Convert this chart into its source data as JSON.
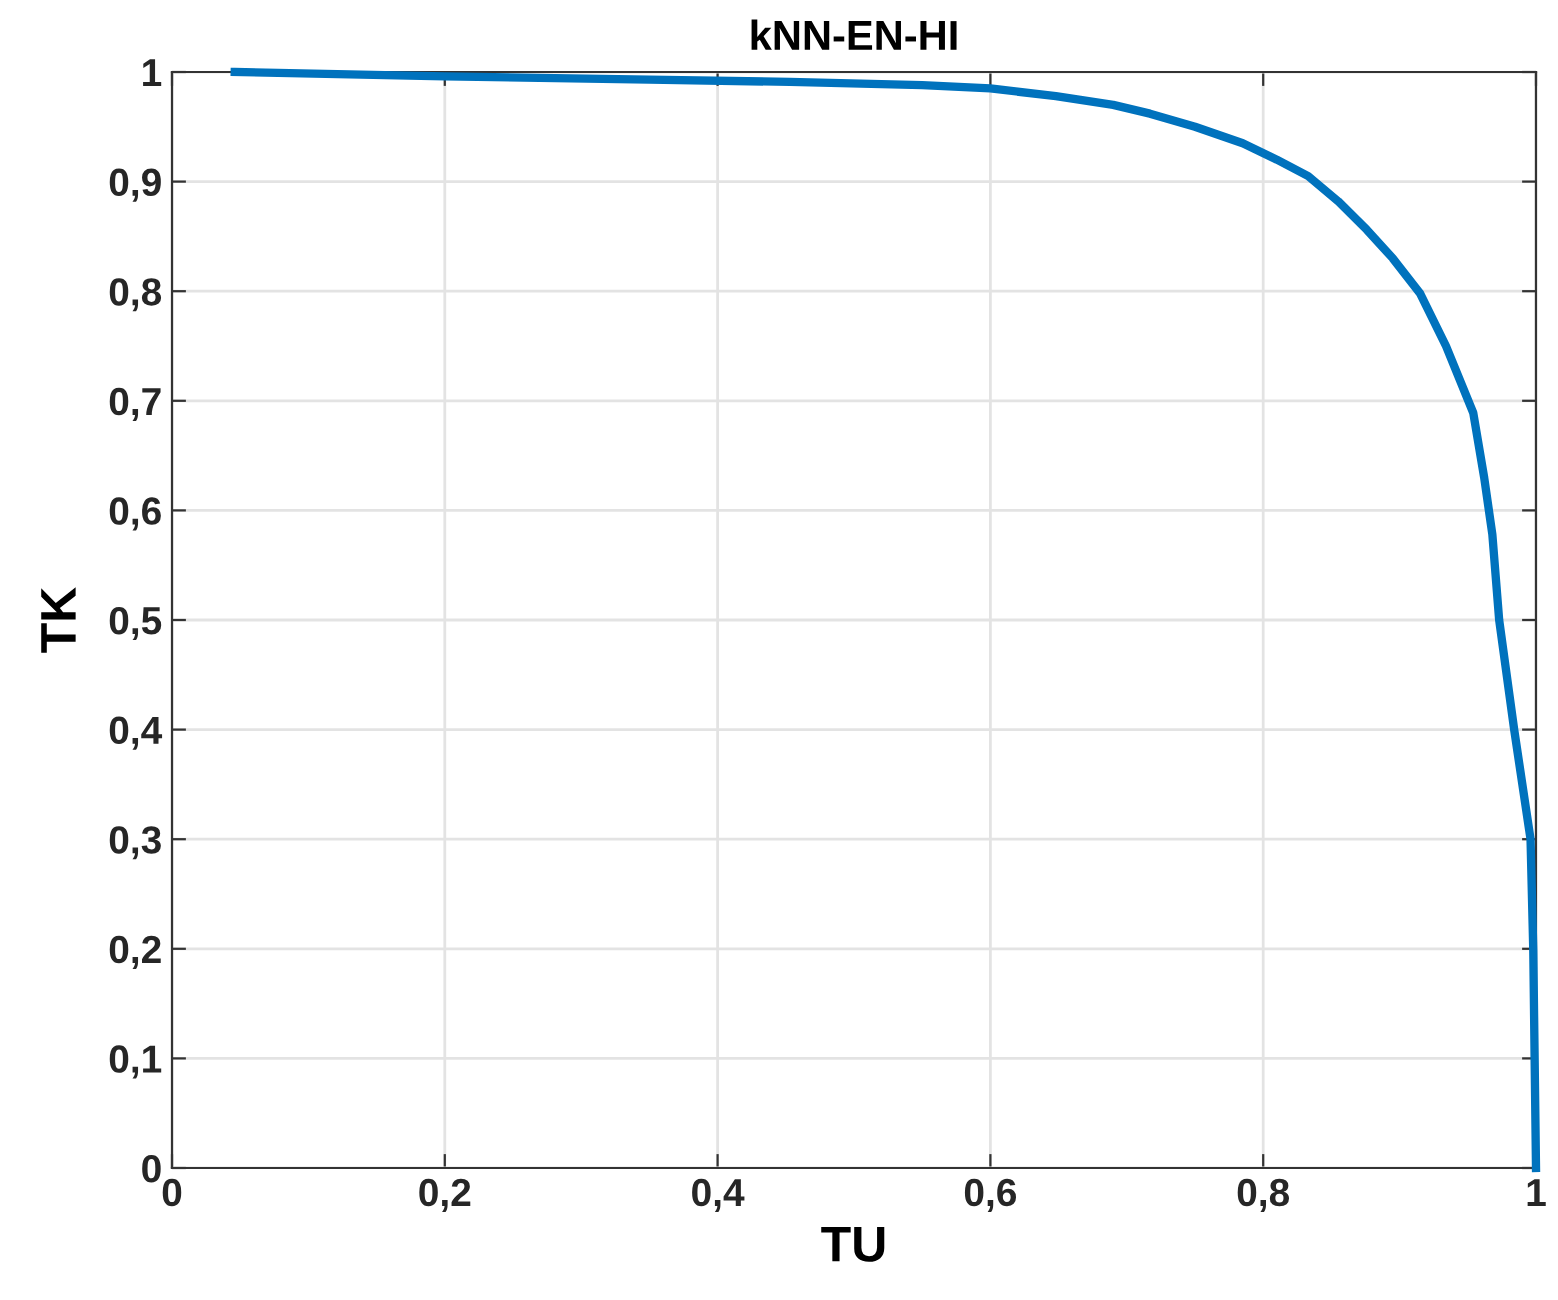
{
  "chart_data": {
    "type": "line",
    "title": "kNN-EN-HI",
    "xlabel": "TU",
    "ylabel": "TK",
    "x": [
      0.046,
      0.2,
      0.35,
      0.453,
      0.55,
      0.6,
      0.648,
      0.69,
      0.717,
      0.75,
      0.785,
      0.81,
      0.833,
      0.855,
      0.876,
      0.895,
      0.915,
      0.934,
      0.954,
      0.962,
      0.968,
      0.973,
      0.984,
      0.996,
      0.998,
      1.0
    ],
    "series": [
      {
        "color": "#0072bd",
        "values": [
          1.0,
          0.996,
          0.993,
          0.991,
          0.988,
          0.985,
          0.978,
          0.97,
          0.962,
          0.95,
          0.935,
          0.92,
          0.905,
          0.882,
          0.856,
          0.83,
          0.798,
          0.75,
          0.689,
          0.63,
          0.578,
          0.5,
          0.4,
          0.3,
          0.199,
          0.0
        ]
      }
    ],
    "xlim": [
      0,
      1
    ],
    "ylim": [
      0,
      1
    ],
    "xticks": [
      {
        "value": 0,
        "label": "0"
      },
      {
        "value": 0.2,
        "label": "0,2"
      },
      {
        "value": 0.4,
        "label": "0,4"
      },
      {
        "value": 0.6,
        "label": "0,6"
      },
      {
        "value": 0.8,
        "label": "0,8"
      },
      {
        "value": 1,
        "label": "1"
      }
    ],
    "yticks": [
      {
        "value": 0,
        "label": "0"
      },
      {
        "value": 0.1,
        "label": "0,1"
      },
      {
        "value": 0.2,
        "label": "0,2"
      },
      {
        "value": 0.3,
        "label": "0,3"
      },
      {
        "value": 0.4,
        "label": "0,4"
      },
      {
        "value": 0.5,
        "label": "0,5"
      },
      {
        "value": 0.6,
        "label": "0,6"
      },
      {
        "value": 0.7,
        "label": "0,7"
      },
      {
        "value": 0.8,
        "label": "0,8"
      },
      {
        "value": 0.9,
        "label": "0,9"
      },
      {
        "value": 1,
        "label": "1"
      }
    ],
    "grid": true,
    "line_style": "solid",
    "marker": "none"
  }
}
